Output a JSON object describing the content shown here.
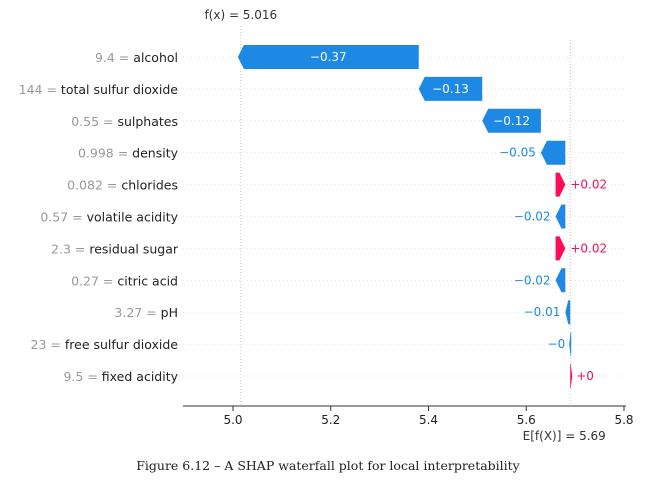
{
  "chart_data": {
    "type": "waterfall",
    "fx_label": "f(x) = 5.016",
    "base_label": "E[f(X)] = 5.69",
    "fx": 5.016,
    "base": 5.69,
    "xlim": [
      4.9,
      5.8
    ],
    "xticks": [
      5.0,
      5.2,
      5.4,
      5.6,
      5.8
    ],
    "tick_labels": [
      "5.0",
      "5.2",
      "5.4",
      "5.6",
      "5.8"
    ],
    "colors": {
      "negative": "#1E88E5",
      "positive": "#FF0D57",
      "axis": "#333333",
      "label": "#999999"
    },
    "features": [
      {
        "value": "9.4",
        "name": "alcohol",
        "contrib": -0.37,
        "label": "−0.37"
      },
      {
        "value": "144",
        "name": "total sulfur dioxide",
        "contrib": -0.13,
        "label": "−0.13"
      },
      {
        "value": "0.55",
        "name": "sulphates",
        "contrib": -0.12,
        "label": "−0.12"
      },
      {
        "value": "0.998",
        "name": "density",
        "contrib": -0.05,
        "label": "−0.05"
      },
      {
        "value": "0.082",
        "name": "chlorides",
        "contrib": 0.02,
        "label": "+0.02"
      },
      {
        "value": "0.57",
        "name": "volatile acidity",
        "contrib": -0.02,
        "label": "−0.02"
      },
      {
        "value": "2.3",
        "name": "residual sugar",
        "contrib": 0.02,
        "label": "+0.02"
      },
      {
        "value": "0.27",
        "name": "citric acid",
        "contrib": -0.02,
        "label": "−0.02"
      },
      {
        "value": "3.27",
        "name": "pH",
        "contrib": -0.01,
        "label": "−0.01"
      },
      {
        "value": "23",
        "name": "free sulfur dioxide",
        "contrib": -0.002,
        "label": "−0"
      },
      {
        "value": "9.5",
        "name": "fixed acidity",
        "contrib": 0.002,
        "label": "+0"
      }
    ]
  },
  "caption": "Figure 6.12 – A SHAP waterfall plot for local interpretability"
}
